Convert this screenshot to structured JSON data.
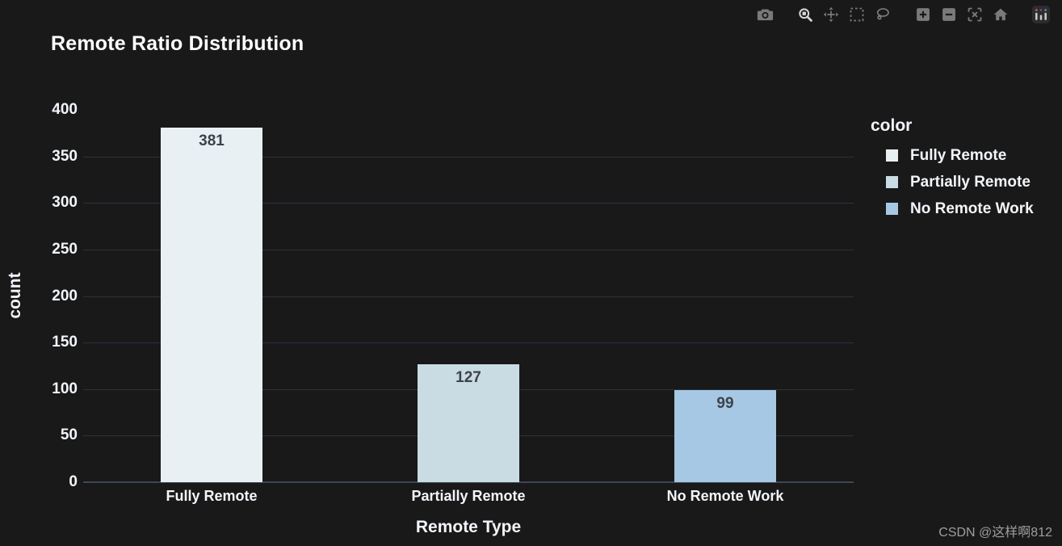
{
  "page": {
    "background": "#191919",
    "watermark": "CSDN @这样啊812"
  },
  "modebar": {
    "icons": [
      {
        "name": "camera-icon",
        "group": 1,
        "active": false
      },
      {
        "name": "zoom-icon",
        "group": 2,
        "active": true
      },
      {
        "name": "pan-icon",
        "group": 2,
        "active": false
      },
      {
        "name": "box-select-icon",
        "group": 2,
        "active": false
      },
      {
        "name": "lasso-select-icon",
        "group": 2,
        "active": false
      },
      {
        "name": "zoom-in-icon",
        "group": 3,
        "active": false
      },
      {
        "name": "zoom-out-icon",
        "group": 3,
        "active": false
      },
      {
        "name": "autoscale-icon",
        "group": 3,
        "active": false
      },
      {
        "name": "reset-axes-icon",
        "group": 3,
        "active": false
      },
      {
        "name": "plotly-logo-icon",
        "group": 4,
        "active": false
      }
    ]
  },
  "chart_data": {
    "type": "bar",
    "title": "Remote Ratio Distribution",
    "xlabel": "Remote Type",
    "ylabel": "count",
    "categories": [
      "Fully Remote",
      "Partially Remote",
      "No Remote Work"
    ],
    "values": [
      381,
      127,
      99
    ],
    "colors": [
      "#e8f0f4",
      "#c9dce3",
      "#a6c8e5"
    ],
    "yticks": [
      0,
      50,
      100,
      150,
      200,
      250,
      300,
      350,
      400
    ],
    "ylim": [
      0,
      400
    ],
    "grid": true,
    "legend": {
      "title": "color",
      "position": "right",
      "entries": [
        {
          "label": "Fully Remote",
          "color": "#e8f0f4"
        },
        {
          "label": "Partially Remote",
          "color": "#c9dce3"
        },
        {
          "label": "No Remote Work",
          "color": "#a6c8e5"
        }
      ]
    },
    "text_color": "#f2f5fa",
    "grid_color": "#2a3240",
    "zeroline_color": "#3e4654",
    "bar_label_color": "#3d434b"
  }
}
